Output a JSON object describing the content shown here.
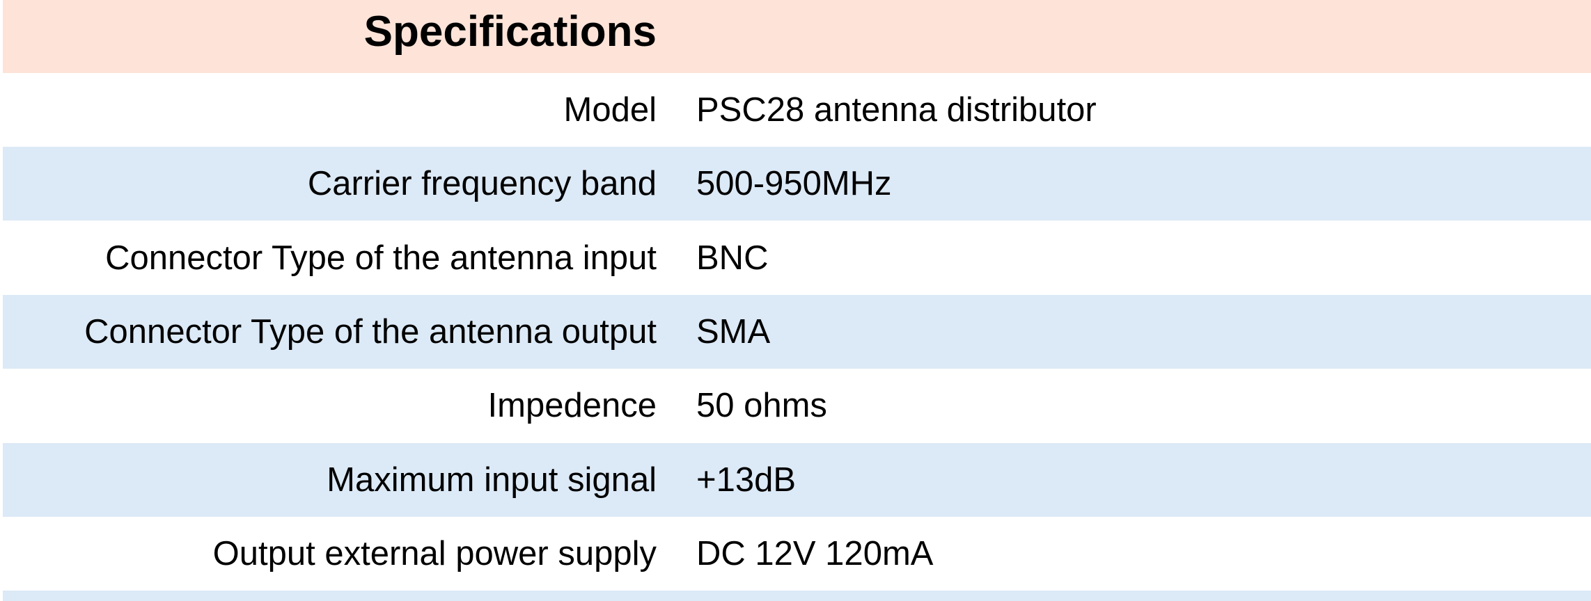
{
  "header": {
    "title": "Specifications"
  },
  "table": {
    "rows": [
      [
        "Model",
        "PSC28 antenna distributor"
      ],
      [
        "Carrier frequency band",
        "500-950MHz"
      ],
      [
        "Connector Type of the antenna input",
        "BNC"
      ],
      [
        "Connector Type of the antenna output",
        "SMA"
      ],
      [
        "Impedence",
        "50 ohms"
      ],
      [
        "Maximum input signal",
        "+13dB"
      ],
      [
        "Output external power supply",
        "DC 12V 120mA"
      ]
    ]
  }
}
